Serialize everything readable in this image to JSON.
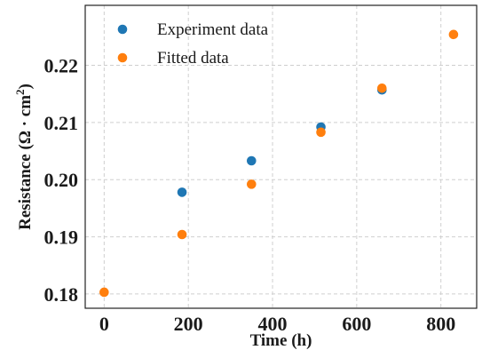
{
  "chart_data": {
    "type": "scatter",
    "title": "",
    "xlabel": "Time (h)",
    "ylabel": "Resistance (Ω · cm²)",
    "ylabel_main": "Resistance (Ω · cm",
    "ylabel_sup": "2",
    "ylabel_end": ")",
    "xlim": [
      -45,
      885
    ],
    "ylim": [
      0.1775,
      0.2305
    ],
    "xticks": [
      0,
      200,
      400,
      600,
      800
    ],
    "xtick_labels": [
      "0",
      "200",
      "400",
      "600",
      "800"
    ],
    "yticks": [
      0.18,
      0.19,
      0.2,
      0.21,
      0.22
    ],
    "ytick_labels": [
      "0.18",
      "0.19",
      "0.20",
      "0.21",
      "0.22"
    ],
    "grid": true,
    "legend_position": "top-left",
    "series": [
      {
        "name": "Experiment data",
        "color": "#1f77b4",
        "x": [
          185,
          350,
          515,
          660
        ],
        "y": [
          0.1978,
          0.2033,
          0.2092,
          0.2157
        ]
      },
      {
        "name": "Fitted data",
        "color": "#ff7f0e",
        "x": [
          0,
          185,
          350,
          515,
          660,
          830
        ],
        "y": [
          0.1803,
          0.1904,
          0.1992,
          0.2083,
          0.216,
          0.2254
        ]
      }
    ]
  }
}
